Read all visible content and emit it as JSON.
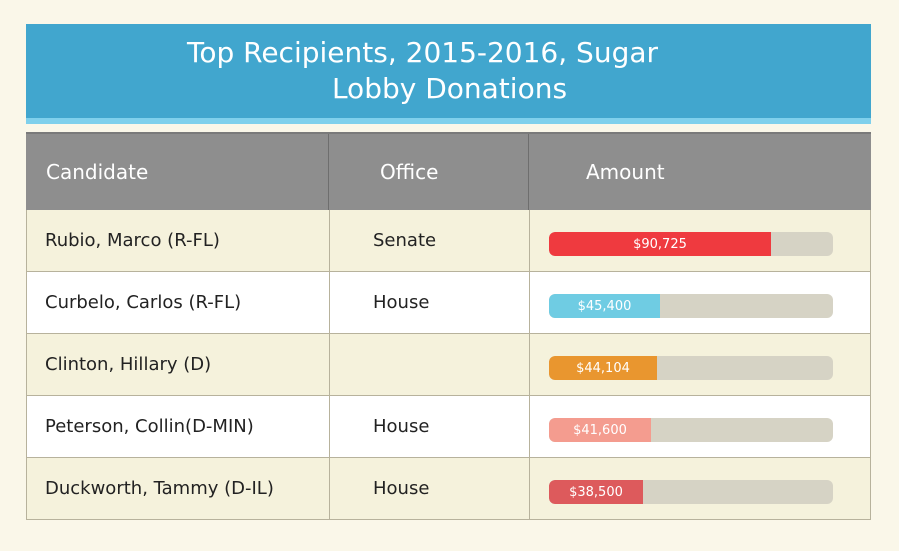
{
  "title_line1": "Top Recipients, 2015-2016, Sugar",
  "title_line2": "Lobby Donations",
  "headers": {
    "candidate": "Candidate",
    "office": "Office",
    "amount": "Amount"
  },
  "colors": {
    "header_bar": "#41a6ce",
    "table_header": "#8e8e8e",
    "track": "#d6d3c5"
  },
  "chart_data": {
    "type": "bar",
    "title": "Top Recipients, 2015-2016, Sugar Lobby Donations",
    "categories": [
      "Rubio, Marco (R-FL)",
      "Curbelo, Carlos (R-FL)",
      "Clinton, Hillary (D)",
      "Peterson, Collin(D-MIN)",
      "Duckworth, Tammy (D-IL)"
    ],
    "values": [
      90725,
      45400,
      44104,
      41600,
      38500
    ],
    "max": 116000,
    "rows": [
      {
        "candidate": "Rubio, Marco (R-FL)",
        "office": "Senate",
        "amount": 90725,
        "label": "$90,725",
        "color": "#ef3a3f"
      },
      {
        "candidate": "Curbelo, Carlos (R-FL)",
        "office": "House",
        "amount": 45400,
        "label": "$45,400",
        "color": "#6fcce3"
      },
      {
        "candidate": "Clinton, Hillary (D)",
        "office": "",
        "amount": 44104,
        "label": "$44,104",
        "color": "#e9962f"
      },
      {
        "candidate": "Peterson, Collin(D-MIN)",
        "office": "House",
        "amount": 41600,
        "label": "$41,600",
        "color": "#f49c8f"
      },
      {
        "candidate": "Duckworth, Tammy (D-IL)",
        "office": "House",
        "amount": 38500,
        "label": "$38,500",
        "color": "#dd5a5c"
      }
    ]
  }
}
